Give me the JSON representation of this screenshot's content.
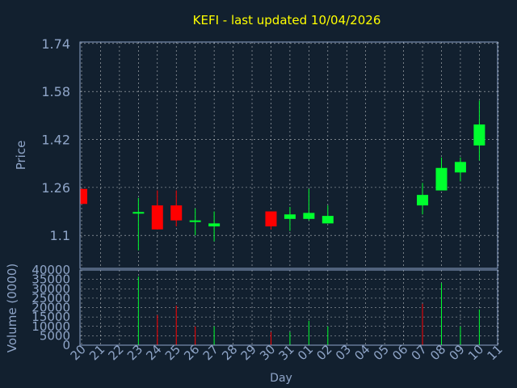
{
  "title": "KEFI - last updated 10/04/2026",
  "colors": {
    "background": "#12202f",
    "title": "#ffff00",
    "axis_text": "#8fa5c8",
    "grid": "#ffffff",
    "up": "#00ff2e",
    "down": "#ff0000"
  },
  "chart_data": [
    {
      "type": "candlestick",
      "title": "KEFI - last updated 10/04/2026",
      "ylabel": "Price",
      "xlabel": "",
      "ylim": [
        0.99,
        1.745
      ],
      "yticks": [
        1.1,
        1.26,
        1.42,
        1.58,
        1.74
      ],
      "grid": true,
      "x": [
        "20",
        "21",
        "22",
        "23",
        "24",
        "25",
        "26",
        "27",
        "28",
        "29",
        "30",
        "31",
        "01",
        "02",
        "03",
        "04",
        "05",
        "06",
        "07",
        "08",
        "09",
        "10",
        "11"
      ],
      "candles": [
        {
          "x": "20",
          "open": 1.255,
          "close": 1.205,
          "high": 1.255,
          "low": 1.205
        },
        {
          "x": "23",
          "open": 1.178,
          "close": 1.178,
          "high": 1.225,
          "low": 1.05
        },
        {
          "x": "24",
          "open": 1.2,
          "close": 1.12,
          "high": 1.25,
          "low": 1.12
        },
        {
          "x": "25",
          "open": 1.2,
          "close": 1.15,
          "high": 1.25,
          "low": 1.13
        },
        {
          "x": "26",
          "open": 1.15,
          "close": 1.15,
          "high": 1.19,
          "low": 1.1
        },
        {
          "x": "27",
          "open": 1.13,
          "close": 1.14,
          "high": 1.18,
          "low": 1.08
        },
        {
          "x": "30",
          "open": 1.18,
          "close": 1.13,
          "high": 1.18,
          "low": 1.12
        },
        {
          "x": "31",
          "open": 1.155,
          "close": 1.17,
          "high": 1.195,
          "low": 1.115
        },
        {
          "x": "01",
          "open": 1.155,
          "close": 1.175,
          "high": 1.255,
          "low": 1.15
        },
        {
          "x": "02",
          "open": 1.14,
          "close": 1.165,
          "high": 1.2,
          "low": 1.14
        },
        {
          "x": "07",
          "open": 1.2,
          "close": 1.235,
          "high": 1.275,
          "low": 1.17
        },
        {
          "x": "08",
          "open": 1.25,
          "close": 1.325,
          "high": 1.36,
          "low": 1.25
        },
        {
          "x": "09",
          "open": 1.31,
          "close": 1.345,
          "high": 1.36,
          "low": 1.28
        },
        {
          "x": "10",
          "open": 1.4,
          "close": 1.47,
          "high": 1.55,
          "low": 1.35
        }
      ]
    },
    {
      "type": "bar",
      "ylabel": "Volume (0000)",
      "xlabel": "Day",
      "ylim": [
        0,
        40000
      ],
      "yticks": [
        0,
        5000,
        10000,
        15000,
        20000,
        25000,
        30000,
        35000,
        40000
      ],
      "grid": true,
      "categories": [
        "20",
        "21",
        "22",
        "23",
        "24",
        "25",
        "26",
        "27",
        "28",
        "29",
        "30",
        "31",
        "01",
        "02",
        "03",
        "04",
        "05",
        "06",
        "07",
        "08",
        "09",
        "10",
        "11"
      ],
      "bars": [
        {
          "x": "23",
          "value": 36500,
          "direction": "up"
        },
        {
          "x": "24",
          "value": 16000,
          "direction": "down"
        },
        {
          "x": "25",
          "value": 21000,
          "direction": "down"
        },
        {
          "x": "26",
          "value": 10000,
          "direction": "down"
        },
        {
          "x": "27",
          "value": 10000,
          "direction": "up"
        },
        {
          "x": "30",
          "value": 7000,
          "direction": "down"
        },
        {
          "x": "31",
          "value": 7000,
          "direction": "up"
        },
        {
          "x": "01",
          "value": 13000,
          "direction": "up"
        },
        {
          "x": "02",
          "value": 10000,
          "direction": "up"
        },
        {
          "x": "07",
          "value": 22000,
          "direction": "down"
        },
        {
          "x": "08",
          "value": 33000,
          "direction": "up"
        },
        {
          "x": "09",
          "value": 10000,
          "direction": "up"
        },
        {
          "x": "10",
          "value": 19000,
          "direction": "up"
        }
      ]
    }
  ]
}
